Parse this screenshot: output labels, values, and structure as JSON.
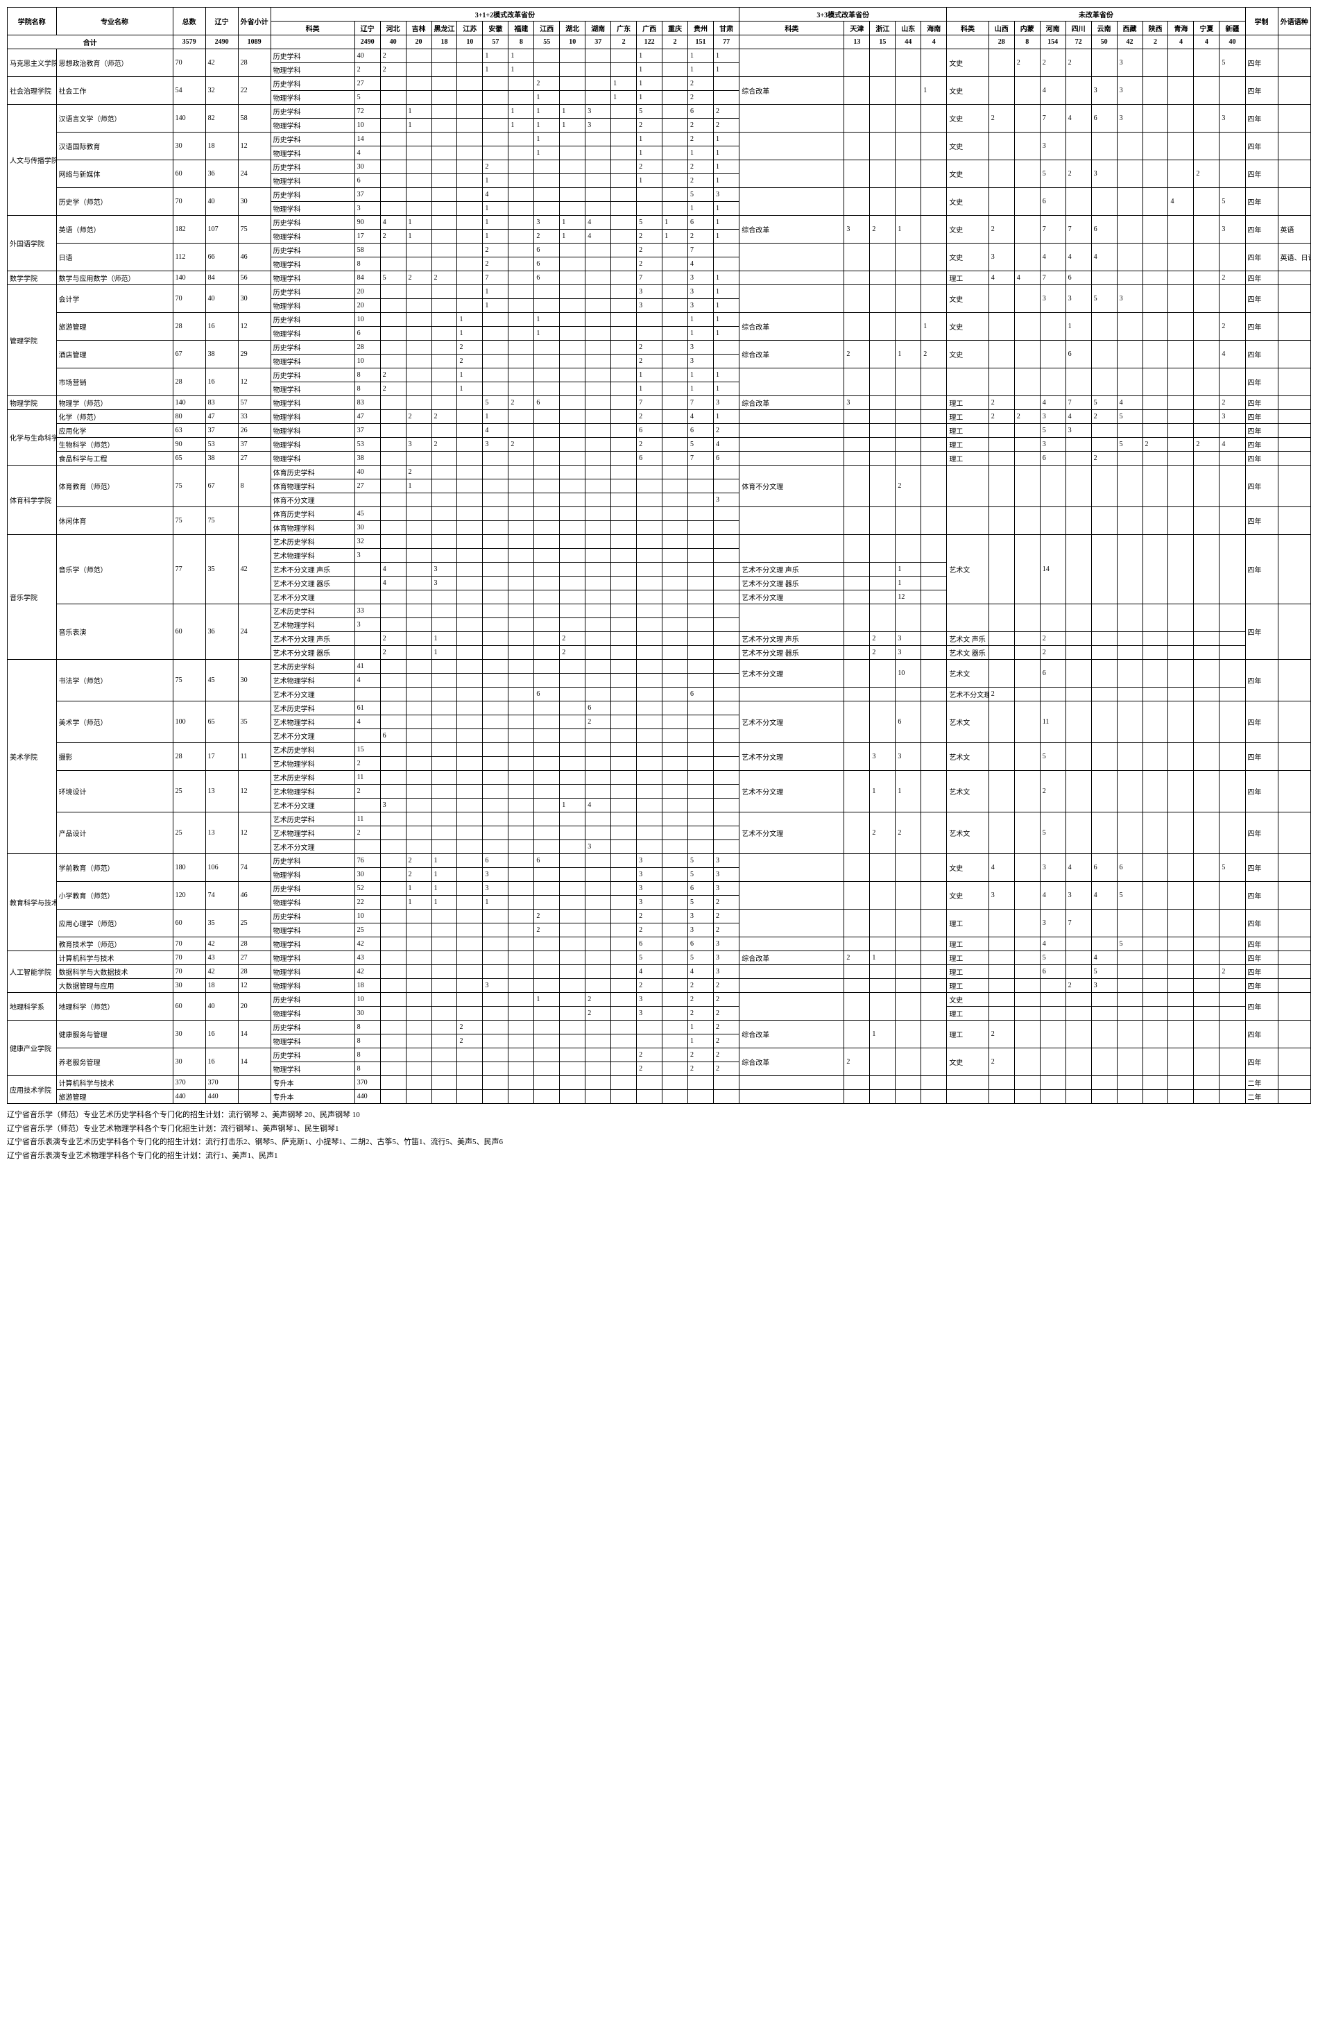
{
  "headers": {
    "col_xueyuan": "学院名称",
    "col_zhuanye": "专业名称",
    "col_zongshu": "总数",
    "col_liaoning": "辽宁",
    "col_waisheng": "外省小计",
    "g312": "3+1+2模式改革省份",
    "g33": "3+3模式改革省份",
    "g_wgg": "未改革省份",
    "col_kelei": "科类",
    "col_kelei2": "科类",
    "col_kelei3": "科类",
    "p_ln": "辽宁",
    "p_hb": "河北",
    "p_jl": "吉林",
    "p_hlj": "黑龙江",
    "p_js": "江苏",
    "p_ah": "安徽",
    "p_fj": "福建",
    "p_jx": "江西",
    "p_hub": "湖北",
    "p_hun": "湖南",
    "p_gd": "广东",
    "p_gx": "广西",
    "p_cq": "重庆",
    "p_gz": "贵州",
    "p_gs": "甘肃",
    "p_tj": "天津",
    "p_zj": "浙江",
    "p_sd": "山东",
    "p_hain": "海南",
    "p_sx": "山西",
    "p_nm": "内蒙",
    "p_hn": "河南",
    "p_sc": "四川",
    "p_yn": "云南",
    "p_xz": "西藏",
    "p_sx2": "陕西",
    "p_qh": "青海",
    "p_nx": "宁夏",
    "p_xj": "新疆",
    "col_xuezhi": "学制",
    "col_waiyu": "外语语种",
    "row_heji": "合计"
  },
  "totals": {
    "zongshu": "3579",
    "liaoning": "2490",
    "waisheng": "1089",
    "ln": "2490",
    "hb": "40",
    "jl": "20",
    "hlj": "18",
    "js": "10",
    "ah": "57",
    "fj": "8",
    "jx": "55",
    "hub": "10",
    "hun": "37",
    "gd": "2",
    "gx": "122",
    "cq": "2",
    "gz": "151",
    "gs": "77",
    "tj": "13",
    "zj": "15",
    "sd": "44",
    "hain": "4",
    "sx": "28",
    "nm": "8",
    "hn": "154",
    "sc": "72",
    "yn": "50",
    "xz": "42",
    "sx2": "2",
    "qh": "4",
    "nx": "4",
    "xj": "40"
  },
  "kelei": {
    "ls": "历史学科",
    "wl": "物理学科",
    "zhgg": "综合改革",
    "tyls": "体育历史学科",
    "tywl": "体育物理学科",
    "tybf": "体育不分文理",
    "tybf2": "体育不分文理",
    "ysls": "艺术历史学科",
    "yswl": "艺术物理学科",
    "ysbfsl": "艺术不分文理 声乐",
    "ysbfql": "艺术不分文理 器乐",
    "ysbf": "艺术不分文理",
    "zsb": "专升本"
  },
  "sci": {
    "wenshi": "文史",
    "liggong": "理工",
    "ysw": "艺术文",
    "ysbf": "艺术不分文理",
    "yswsl": "艺术文 声乐",
    "yswql": "艺术文 器乐"
  },
  "xz": {
    "y4": "四年",
    "y2": "二年"
  },
  "wy": {
    "en": "英语",
    "enjp": "英语、日语"
  },
  "colleges": {
    "mks": "马克思主义学院",
    "shzl": "社会治理学院",
    "rwcm": "人文与传播学院",
    "wgy": "外国语学院",
    "sx": "数学学院",
    "gl": "管理学院",
    "wl": "物理学院",
    "hxsm": "化学与生命科学学院",
    "tykx": "体育科学学院",
    "yy": "音乐学院",
    "ms": "美术学院",
    "jk": "教育科学与技术学院",
    "rgzn": "人工智能学院",
    "dl": "地理科学系",
    "jkcy": "健康产业学院",
    "yyjs": "应用技术学院"
  },
  "majors": {
    "sxzz": "思想政治教育（师范）",
    "shgz": "社会工作",
    "hyw": "汉语言文学（师范）",
    "hygj": "汉语国际教育",
    "wlxmt": "网络与新媒体",
    "lsx": "历史学（师范）",
    "yy": "英语（师范）",
    "ry": "日语",
    "sxyy": "数学与应用数学（师范）",
    "kjx": "会计学",
    "lygl": "旅游管理",
    "jdgl": "酒店管理",
    "scyx": "市场营销",
    "wlx": "物理学（师范）",
    "hx": "化学（师范）",
    "yyhx": "应用化学",
    "swkx": "生物科学（师范）",
    "spkx": "食品科学与工程",
    "tyjy": "体育教育（师范）",
    "xxty": "休闲体育",
    "ylx": "音乐学（师范）",
    "ylby": "音乐表演",
    "sfx": "书法学（师范）",
    "msx": "美术学（师范）",
    "sy": "摄影",
    "hjsj": "环境设计",
    "cpsj": "产品设计",
    "xqjy": "学前教育（师范）",
    "xxjy": "小学教育（师范）",
    "yyxl": "应用心理学（师范）",
    "jyjs": "教育技术学（师范）",
    "jsjkx": "计算机科学与技术",
    "sjkx": "数据科学与大数据技术",
    "dsj": "大数据管理与应用",
    "dlkx": "地理科学（师范）",
    "jkfw": "健康服务与管理",
    "ylfw": "养老服务管理",
    "jsjkx2": "计算机科学与技术",
    "lygl2": "旅游管理"
  },
  "footnotes": {
    "f1": "辽宁省音乐学（师范）专业艺术历史学科各个专门化的招生计划：流行钢琴 2、美声钢琴 20、民声钢琴 10",
    "f2": "辽宁省音乐学（师范）专业艺术物理学科各个专门化招生计划：流行钢琴1、美声钢琴1、民生钢琴1",
    "f3": "辽宁省音乐表演专业艺术历史学科各个专门化的招生计划：流行打击乐2、钢琴5、萨克斯1、小提琴1、二胡2、古筝5、竹笛1、流行5、美声5、民声6",
    "f4": "辽宁省音乐表演专业艺术物理学科各个专门化的招生计划：流行1、美声1、民声1"
  }
}
